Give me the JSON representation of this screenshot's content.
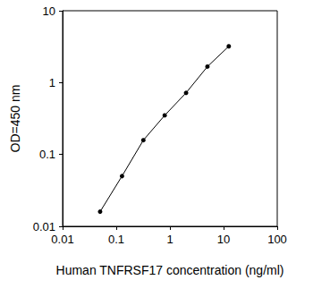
{
  "chart_data": {
    "type": "line",
    "x_label": "Human TNFRSF17 concentration (ng/ml)",
    "y_label": "OD=450 nm",
    "x": [
      0.05,
      0.128,
      0.32,
      0.8,
      2,
      5,
      12.5
    ],
    "values": [
      0.016,
      0.05,
      0.158,
      0.35,
      0.72,
      1.67,
      3.2
    ],
    "color": "#000000",
    "marker": "circle",
    "line_style": "solid",
    "log": true,
    "grid": false,
    "xlim": [
      0.01,
      100
    ],
    "xticks": [
      0.01,
      0.1,
      1,
      10,
      100
    ],
    "ylim": [
      0.01,
      10
    ],
    "yticks": [
      0.01,
      0.1,
      1,
      10
    ]
  }
}
